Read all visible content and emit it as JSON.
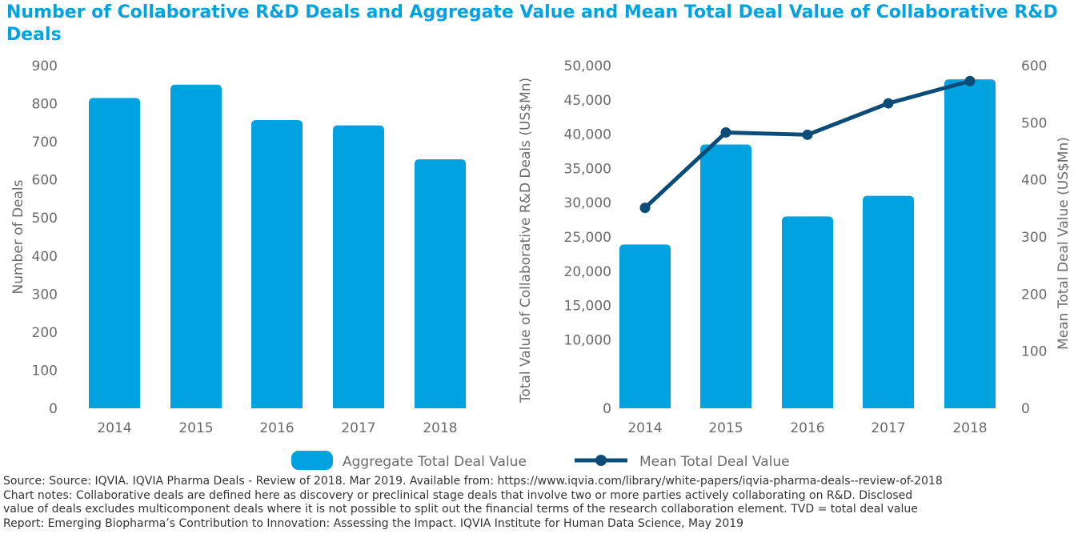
{
  "title": "Number of Collaborative R&D Deals and Aggregate Value and Mean Total Deal Value of Collaborative R&D Deals",
  "colors": {
    "bar": "#00a3e0",
    "line": "#0b4c79",
    "title": "#00a3e0",
    "text": "#6b6b6b"
  },
  "chart_data": [
    {
      "type": "bar",
      "categories": [
        "2014",
        "2015",
        "2016",
        "2017",
        "2018"
      ],
      "values": [
        815,
        850,
        757,
        743,
        654
      ],
      "ylabel": "Number of Deals",
      "ylim": [
        0,
        900
      ],
      "yticks": [
        "0",
        "100",
        "200",
        "300",
        "400",
        "500",
        "600",
        "700",
        "800",
        "900"
      ]
    },
    {
      "type": "bar+line",
      "categories": [
        "2014",
        "2015",
        "2016",
        "2017",
        "2018"
      ],
      "series": [
        {
          "name": "Aggregate Total Deal Value",
          "type": "bar",
          "axis": "left",
          "values": [
            23900,
            38500,
            28000,
            31000,
            48000
          ]
        },
        {
          "name": "Mean Total Deal Value",
          "type": "line",
          "axis": "right",
          "values": [
            351,
            483,
            479,
            534,
            573
          ]
        }
      ],
      "ylabel_left": "Total Value of Collaborative R&D Deals (US$Mn)",
      "ylim_left": [
        0,
        50000
      ],
      "yticks_left": [
        "0",
        "10,000",
        "15,000",
        "20,000",
        "25,000",
        "30,000",
        "35,000",
        "40,000",
        "45,000",
        "50,000"
      ],
      "ylabel_right": "Mean Total Deal Value (US$Mn)",
      "ylim_right": [
        0,
        600
      ],
      "yticks_right": [
        "0",
        "100",
        "200",
        "300",
        "400",
        "500",
        "600"
      ]
    }
  ],
  "legend": {
    "bar_label": "Aggregate Total Deal Value",
    "line_label": "Mean Total Deal Value"
  },
  "notes": {
    "source": "Source: Source: IQVIA. IQVIA Pharma Deals - Review of 2018. Mar 2019. Available from: https://www.iqvia.com/library/white-papers/iqvia-pharma-deals--review-of-2018",
    "chart_notes_1": "Chart notes: Collaborative deals are defined here as discovery or preclinical stage deals that involve two or more parties actively collaborating on R&D. Disclosed",
    "chart_notes_2": "value of deals excludes multicomponent deals where it is not possible to split out the financial terms of the research collaboration element. TVD = total deal value",
    "report": "Report: Emerging Biopharma’s Contribution to Innovation: Assessing the Impact. IQVIA Institute for Human Data Science, May 2019"
  }
}
